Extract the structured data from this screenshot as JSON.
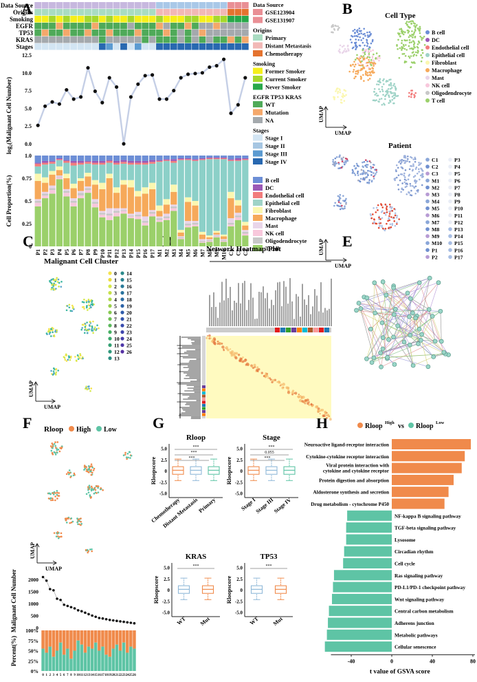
{
  "panels": {
    "A": "A",
    "B": "B",
    "C": "C",
    "D": "D",
    "E": "E",
    "F": "F",
    "G": "G",
    "H": "H"
  },
  "colors": {
    "b_cell": "#6c8ed6",
    "dc": "#9b59b6",
    "endothelial": "#f27c7c",
    "epithelial": "#9fd3c7",
    "fibroblast": "#fbf7b0",
    "macrophage": "#f6a95a",
    "mast": "#e9d5e9",
    "nk": "#f8c8dc",
    "oligo": "#c8c8c8",
    "t_cell": "#9bd06a",
    "epi_dark": "#8cd0c8",
    "rloop_high": "#f08a4b",
    "rloop_low": "#5ec4a5",
    "ds1": "#e98f95",
    "ds2": "#a9c8e8",
    "orig_primary": "#a9dcc2",
    "orig_meta": "#f2b8b6",
    "orig_chemo": "#e4732f",
    "smoke_former": "#f5ef1b",
    "smoke_current": "#a6d82c",
    "smoke_never": "#28a84a",
    "wt": "#4faa59",
    "mut": "#f4a86b",
    "na": "#a4a9ad",
    "st1": "#d3e5f3",
    "st2": "#a6c6e2",
    "st3": "#5c9bd1",
    "st4": "#2868b0"
  },
  "panelA": {
    "row_labels": [
      "Data Source",
      "Origins",
      "Smoking",
      "EGFR",
      "TP53",
      "KRAS",
      "Stages"
    ],
    "legend_groups": [
      {
        "title": "Data Source",
        "items": [
          {
            "label": "GSE123904",
            "color": "#e98f95"
          },
          {
            "label": "GSE131907",
            "color": "#e98f95"
          }
        ]
      },
      {
        "title": "Origins",
        "items": [
          {
            "label": "Primary",
            "color": "#a9dcc2"
          },
          {
            "label": "Distant Metastasis",
            "color": "#f2b8b6"
          },
          {
            "label": "Chemotherapy",
            "color": "#e4732f"
          }
        ]
      },
      {
        "title": "Smoking",
        "items": [
          {
            "label": "Former Smoker",
            "color": "#f5ef1b"
          },
          {
            "label": "Current Smoker",
            "color": "#a6d82c"
          },
          {
            "label": "Never Smoker",
            "color": "#28a84a"
          }
        ]
      },
      {
        "title": "EGFR TP53 KRAS",
        "items": [
          {
            "label": "WT",
            "color": "#4faa59"
          },
          {
            "label": "Mutation",
            "color": "#f4a86b"
          },
          {
            "label": "NA",
            "color": "#a4a9ad"
          }
        ]
      },
      {
        "title": "Stages",
        "items": [
          {
            "label": "Stage I",
            "color": "#d3e5f3"
          },
          {
            "label": "Stage II",
            "color": "#a6c6e2"
          },
          {
            "label": "Stage III",
            "color": "#5c9bd1"
          },
          {
            "label": "Stage IV",
            "color": "#2868b0"
          }
        ]
      }
    ],
    "line_ylabel": "log₂(Malignant Cell Number)",
    "line_yticks": [
      "0.0",
      "2.5",
      "5.0",
      "7.5",
      "10.0",
      "12.5"
    ],
    "bar_ylabel": "Cell Proportion(%)",
    "bar_yticks": [
      "0",
      "0.25",
      "0.5",
      "0.75",
      "1.0"
    ],
    "bar_legend": [
      "B cell",
      "DC",
      "Endothelial cell",
      "Epithelial cell",
      "Fibroblast",
      "Macrophage",
      "Mast",
      "NK cell",
      "Oligodendrocyte",
      "T cell"
    ]
  },
  "chart_data": [
    {
      "type": "line",
      "title": "",
      "ylabel": "log₂(Malignant Cell Number)",
      "ylim": [
        0,
        12.5
      ],
      "categories": [
        "P1",
        "P2",
        "P3",
        "P4",
        "P5",
        "P6",
        "P7",
        "P8",
        "P9",
        "P10",
        "P11",
        "P12",
        "P13",
        "P14",
        "P15",
        "P16",
        "P17",
        "M1",
        "M2",
        "M3",
        "M4",
        "M5",
        "M6",
        "M7",
        "M8",
        "M9",
        "M10",
        "C1",
        "C2",
        "C3"
      ],
      "values": [
        2.6,
        5.3,
        5.9,
        5.6,
        7.6,
        6.3,
        6.6,
        10.7,
        7.4,
        5.8,
        9.3,
        8.0,
        0.0,
        6.6,
        8.4,
        9.6,
        9.7,
        6.3,
        6.3,
        7.5,
        9.3,
        9.8,
        9.9,
        10.0,
        10.8,
        11.0,
        11.9,
        4.3,
        5.5,
        9.3
      ]
    },
    {
      "type": "bar",
      "stacked": true,
      "ylabel": "Cell Proportion(%)",
      "ylim": [
        0,
        1
      ],
      "categories": [
        "P1",
        "P2",
        "P3",
        "P4",
        "P5",
        "P6",
        "P7",
        "P8",
        "P9",
        "P10",
        "P11",
        "P12",
        "P13",
        "P14",
        "P15",
        "P16",
        "P17",
        "M1",
        "M2",
        "M3",
        "M4",
        "M5",
        "M6",
        "M7",
        "M8",
        "M9",
        "M10",
        "C1",
        "C2",
        "C3"
      ],
      "series": [
        {
          "name": "T cell",
          "values": [
            0.44,
            0.53,
            0.58,
            0.74,
            0.55,
            0.44,
            0.53,
            0.59,
            0.43,
            0.32,
            0.29,
            0.33,
            0.36,
            0.31,
            0.3,
            0.23,
            0.33,
            0.27,
            0.29,
            0.39,
            0.08,
            0.21,
            0.22,
            0.04,
            0.05,
            0.1,
            0.05,
            0.22,
            0.29,
            0.12
          ]
        },
        {
          "name": "NK cell",
          "values": [
            0.04,
            0.03,
            0.04,
            0.02,
            0.04,
            0.04,
            0.03,
            0.03,
            0.04,
            0.03,
            0.05,
            0.04,
            0.03,
            0.02,
            0.03,
            0.03,
            0.03,
            0.02,
            0.02,
            0.03,
            0.01,
            0.02,
            0.02,
            0.01,
            0.01,
            0.01,
            0.01,
            0.02,
            0.03,
            0.02
          ]
        },
        {
          "name": "Oligodendrocyte",
          "values": [
            0.02,
            0.02,
            0.02,
            0.01,
            0.02,
            0.02,
            0.03,
            0.02,
            0.02,
            0.02,
            0.02,
            0.02,
            0.01,
            0.01,
            0.02,
            0.02,
            0.02,
            0.02,
            0.02,
            0.02,
            0.01,
            0.02,
            0.02,
            0.01,
            0.01,
            0.01,
            0.01,
            0.02,
            0.02,
            0.02
          ]
        },
        {
          "name": "Mast",
          "values": [
            0.02,
            0.02,
            0.03,
            0.01,
            0.02,
            0.03,
            0.02,
            0.02,
            0.03,
            0.02,
            0.06,
            0.03,
            0.02,
            0.02,
            0.03,
            0.05,
            0.02,
            0.02,
            0.03,
            0.02,
            0.01,
            0.03,
            0.02,
            0.02,
            0.01,
            0.01,
            0.01,
            0.05,
            0.03,
            0.02
          ]
        },
        {
          "name": "Macrophage",
          "values": [
            0.2,
            0.1,
            0.12,
            0.06,
            0.12,
            0.11,
            0.11,
            0.11,
            0.16,
            0.24,
            0.33,
            0.17,
            0.26,
            0.29,
            0.17,
            0.25,
            0.23,
            0.06,
            0.1,
            0.14,
            0.04,
            0.21,
            0.17,
            0.05,
            0.02,
            0.02,
            0.03,
            0.22,
            0.08,
            0.05
          ]
        },
        {
          "name": "Fibroblast",
          "values": [
            0.08,
            0.06,
            0.04,
            0.04,
            0.05,
            0.05,
            0.03,
            0.04,
            0.05,
            0.07,
            0.05,
            0.06,
            0.05,
            0.08,
            0.06,
            0.07,
            0.07,
            0.06,
            0.06,
            0.08,
            0.03,
            0.05,
            0.05,
            0.03,
            0.02,
            0.02,
            0.02,
            0.07,
            0.06,
            0.04
          ]
        },
        {
          "name": "Epithelial cell",
          "values": [
            0.08,
            0.14,
            0.08,
            0.07,
            0.12,
            0.2,
            0.15,
            0.1,
            0.17,
            0.2,
            0.12,
            0.25,
            0.18,
            0.17,
            0.29,
            0.25,
            0.21,
            0.48,
            0.42,
            0.24,
            0.76,
            0.41,
            0.44,
            0.79,
            0.84,
            0.79,
            0.83,
            0.34,
            0.43,
            0.68
          ]
        },
        {
          "name": "Endothelial cell",
          "values": [
            0.03,
            0.02,
            0.02,
            0.01,
            0.02,
            0.03,
            0.02,
            0.02,
            0.02,
            0.02,
            0.02,
            0.02,
            0.02,
            0.02,
            0.02,
            0.02,
            0.02,
            0.01,
            0.01,
            0.02,
            0.01,
            0.01,
            0.01,
            0.01,
            0.01,
            0.01,
            0.01,
            0.01,
            0.01,
            0.01
          ]
        },
        {
          "name": "DC",
          "values": [
            0.01,
            0.02,
            0.01,
            0.01,
            0.01,
            0.02,
            0.02,
            0.01,
            0.02,
            0.02,
            0.01,
            0.02,
            0.02,
            0.02,
            0.02,
            0.02,
            0.02,
            0.01,
            0.01,
            0.02,
            0.01,
            0.01,
            0.01,
            0.01,
            0.01,
            0.01,
            0.01,
            0.01,
            0.02,
            0.01
          ]
        },
        {
          "name": "B cell",
          "values": [
            0.08,
            0.06,
            0.06,
            0.03,
            0.05,
            0.06,
            0.06,
            0.06,
            0.06,
            0.06,
            0.05,
            0.06,
            0.05,
            0.06,
            0.06,
            0.06,
            0.05,
            0.05,
            0.04,
            0.04,
            0.03,
            0.03,
            0.04,
            0.03,
            0.02,
            0.02,
            0.02,
            0.04,
            0.03,
            0.03
          ]
        }
      ]
    },
    {
      "type": "scatter",
      "title": "",
      "ylabel": "Malignant Cell Number",
      "categories": [
        "0",
        "1",
        "2",
        "3",
        "4",
        "5",
        "6",
        "7",
        "8",
        "9",
        "10",
        "11",
        "12",
        "13",
        "14",
        "15",
        "16",
        "17",
        "18",
        "19",
        "20",
        "21",
        "22",
        "23",
        "24",
        "25",
        "26"
      ],
      "values": [
        2100,
        1950,
        1600,
        1550,
        1200,
        1150,
        950,
        900,
        850,
        800,
        720,
        680,
        620,
        560,
        500,
        450,
        400,
        380,
        350,
        320,
        300,
        280,
        260,
        240,
        220,
        200,
        180
      ]
    },
    {
      "type": "bar",
      "orientation": "horizontal",
      "title": "",
      "xlabel": "t value of GSVA score",
      "xticks": [
        "-40",
        "0",
        "40",
        "80"
      ],
      "categories": [
        "Neuroactive ligand-receptor interaction",
        "Cytokine-cytokine receptor interaction",
        "Viral protein interaction with cytokine and cytokine receptor",
        "Protein digestion and absorption",
        "Aldosterone synthesis and secretion",
        "Drug metabolism - cytochrome P450",
        "NF-kappa B signaling pathway",
        "TGF-beta signaling pathway",
        "Lysosome",
        "Circadian rhythm",
        "Cell cycle",
        "Ras signaling pathway",
        "PD-L1/PD-1 checkpoint pathway",
        "Wnt signaling pathway",
        "Central carbon metabolism",
        "Adherens junction",
        "Metabolic pathways",
        "Cellular senescence"
      ],
      "values": [
        78,
        72,
        69,
        61,
        56,
        52,
        -44,
        -45,
        -45,
        -47,
        -48,
        -57,
        -58,
        -59,
        -62,
        -63,
        -64,
        -66
      ]
    }
  ],
  "panelB": {
    "title1": "Cell Type",
    "title2": "Patient",
    "umap": "UMAP",
    "celltypes": [
      "B cell",
      "DC",
      "Endothelial cell",
      "Epithelial cell",
      "Fibroblast",
      "Macrophage",
      "Mast",
      "NK cell",
      "Oligodendrocyte",
      "T cell"
    ],
    "patients_col1": [
      "C1",
      "C2",
      "C3",
      "M1",
      "M2",
      "M3",
      "M4",
      "M5",
      "M6",
      "M7",
      "M8",
      "M9",
      "M10",
      "P1",
      "P2"
    ],
    "patients_col2": [
      "P3",
      "P4",
      "P5",
      "P6",
      "P7",
      "P8",
      "P9",
      "P10",
      "P11",
      "P12",
      "P13",
      "P14",
      "P15",
      "P16",
      "P17"
    ]
  },
  "panelC": {
    "title": "Malignant Cell Cluster",
    "umap": "UMAP",
    "clusters_col1": [
      "0",
      "1",
      "2",
      "3",
      "4",
      "5",
      "6",
      "7",
      "8",
      "9",
      "10",
      "11",
      "12",
      "13"
    ],
    "clusters_col2": [
      "14",
      "15",
      "16",
      "17",
      "18",
      "19",
      "20",
      "21",
      "22",
      "23",
      "24",
      "25",
      "26"
    ]
  },
  "panelD": {
    "title": "Network Heatmap Plot"
  },
  "panelF": {
    "legend_title": "Rloop",
    "high": "High",
    "low": "Low",
    "umap": "UMAP",
    "ylabel1": "Malignant Cell Number",
    "ylabel2": "Percent(%)",
    "yticks1": [
      "0",
      "500",
      "1000",
      "1500",
      "2000"
    ],
    "yticks2": [
      "0%",
      "25%",
      "50%",
      "75%",
      "100%"
    ],
    "xticks": [
      "0",
      "1",
      "2",
      "3",
      "4",
      "5",
      "6",
      "7",
      "8",
      "9",
      "10",
      "11",
      "12",
      "13",
      "14",
      "15",
      "16",
      "17",
      "18",
      "19",
      "20",
      "21",
      "22",
      "23",
      "24",
      "25",
      "26"
    ]
  },
  "panelG": {
    "titles": [
      "Rloop",
      "Stage",
      "KRAS",
      "TP53"
    ],
    "ylabel": "Rloopscore",
    "yticks": [
      "-5.0",
      "-2.5",
      "0",
      "2.5",
      "5.0"
    ],
    "rloop_groups": [
      "Chemotherapy",
      "Distant Metastasis",
      "Primary"
    ],
    "stage_groups": [
      "Stage I",
      "Stage III",
      "Stage IV"
    ],
    "mut_groups": [
      "WT",
      "Mut"
    ],
    "sig": [
      "***",
      "***",
      "***",
      "***",
      "0.055",
      "***",
      "***",
      "***"
    ]
  },
  "panelH": {
    "title_prefix": "Rloop",
    "sup_high": "High",
    "vs": "vs",
    "sup_low": "Low"
  }
}
